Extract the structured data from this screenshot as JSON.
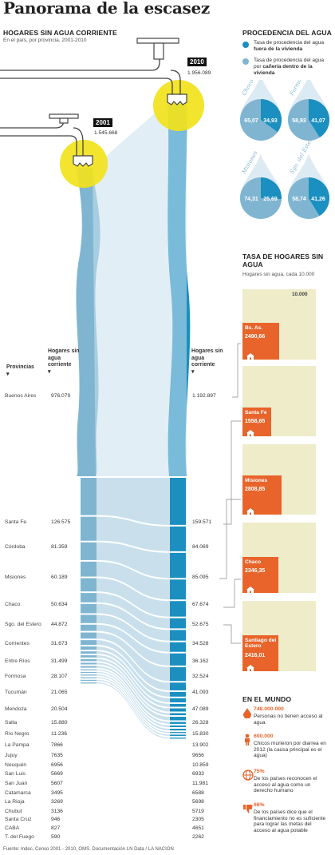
{
  "title": "Panorama de la escasez",
  "left_section": {
    "heading": "HOGARES SIN AGUA CORRIENTE",
    "subheading": "En el país, por provincia, 2001-2010",
    "col_provincias": "Provincias",
    "col_hogares_2001": "Hogares sin agua corriente",
    "col_hogares_2010": "Hogares sin agua corriente",
    "tap_2001": {
      "year": "2001",
      "total": "1.545.668"
    },
    "tap_2010": {
      "year": "2010",
      "total": "1.956.089"
    }
  },
  "chart_data": {
    "type": "bar",
    "title": "HOGARES SIN AGUA CORRIENTE",
    "subtitle": "En el país, por provincia, 2001-2010",
    "categories": [
      "Buenos Aires",
      "Santa Fe",
      "Córdoba",
      "Misiones",
      "Chaco",
      "Sgo. del Estero",
      "Corrientes",
      "Entre Ríos",
      "Formosa",
      "Tucumán",
      "Mendoza",
      "Salta",
      "Río Negro",
      "La Pampa",
      "Jujuy",
      "Neuquén",
      "San Luis",
      "San Juan",
      "Catamarca",
      "La Rioja",
      "Chubut",
      "Santa Cruz",
      "CABA",
      "T. del Fuego"
    ],
    "series": [
      {
        "name": "2001",
        "values": [
          976079,
          126575,
          81359,
          60189,
          50634,
          44872,
          31673,
          31499,
          28107,
          21065,
          20504,
          15880,
          11236,
          7866,
          7635,
          6956,
          5669,
          5607,
          3495,
          3269,
          3136,
          946,
          827,
          590
        ]
      },
      {
        "name": "2010",
        "values": [
          1192897,
          159571,
          84069,
          85095,
          67674,
          52675,
          34528,
          36162,
          32524,
          41093,
          47089,
          26328,
          15830,
          13902,
          9656,
          10859,
          6933,
          11981,
          6588,
          5698,
          5719,
          2305,
          4651,
          2262
        ]
      }
    ],
    "labels_2001": [
      "976.079",
      "126.575",
      "81.359",
      "60.189",
      "50.634",
      "44.872",
      "31.673",
      "31.499",
      "28.107",
      "21.065",
      "20.504",
      "15.880",
      "11.236",
      "7866",
      "7635",
      "6956",
      "5669",
      "5607",
      "3495",
      "3269",
      "3136",
      "946",
      "827",
      "590"
    ],
    "labels_2010": [
      "1.192.897",
      "159.571",
      "84.069",
      "85.095",
      "67.674",
      "52.675",
      "34.528",
      "36.162",
      "32.524",
      "41.093",
      "47.089",
      "26.328",
      "15.830",
      "13.902",
      "9656",
      "10.859",
      "6933",
      "11.981",
      "6588",
      "5698",
      "5719",
      "2305",
      "4651",
      "2262"
    ],
    "totals": {
      "2001": "1.545.668",
      "2010": "1.956.089"
    }
  },
  "procedencia": {
    "heading": "PROCEDENCIA DEL AGUA",
    "legend": [
      {
        "pre": "Tasa de procedencia del agua ",
        "bold": "fuera de la vivienda",
        "color": "#1a8fc0"
      },
      {
        "pre": "Tasa de procedencia del agua por ",
        "bold": "cañería dentro de la vivienda",
        "color": "#7fb5d1"
      }
    ],
    "drops": [
      {
        "name": "Chaco",
        "fuera": 34.93,
        "dentro": 65.07,
        "fuera_label": "34,93",
        "dentro_label": "65,07"
      },
      {
        "name": "Formosa",
        "fuera": 41.07,
        "dentro": 58.93,
        "fuera_label": "41,07",
        "dentro_label": "58,93"
      },
      {
        "name": "Misiones",
        "fuera": 25.69,
        "dentro": 74.31,
        "fuera_label": "25,69",
        "dentro_label": "74,31"
      },
      {
        "name": "Sgo. del Estero",
        "fuera": 41.26,
        "dentro": 58.74,
        "fuera_label": "41,26",
        "dentro_label": "58,74"
      }
    ]
  },
  "tasa": {
    "heading": "TASA DE HOGARES SIN AGUA",
    "subheading": "Hogares sin agua, cada 10.000",
    "scale_label": "10.000",
    "scale_max": 10000,
    "items": [
      {
        "name": "Bs. As.",
        "value": 2490.66,
        "label": "2490,66"
      },
      {
        "name": "Santa Fe",
        "value": 1558.65,
        "label": "1558,65"
      },
      {
        "name": "Misiones",
        "value": 2808.85,
        "label": "2808,85"
      },
      {
        "name": "Chaco",
        "value": 2346.35,
        "label": "2346,35"
      },
      {
        "name": "Santiago del Estero",
        "value": 2416.01,
        "label": "2416,01"
      }
    ]
  },
  "mundo": {
    "heading": "EN EL MUNDO",
    "items": [
      {
        "icon": "drop-icon",
        "value": "748.000.000",
        "text": "Personas no tienen acceso al agua"
      },
      {
        "icon": "child-icon",
        "value": "600.000",
        "text": "Chicos murieron por diarrea en 2012 (la causa principal es el agua)"
      },
      {
        "icon": "globe-icon",
        "value": "75%",
        "text": "De los países reconocen el acceso al agua como un derecho humano"
      },
      {
        "icon": "thumbs-down-icon",
        "value": "66%",
        "text": "De los países dice que el financiamiento no es suficiente para lograr las metas del acceso al agua potable"
      }
    ]
  },
  "source": "Fuente: Indec, Censo 2001 - 2010, OMS. Documentación LN Data / LA NACION",
  "colors": {
    "dark_blue": "#1a8fc0",
    "light_blue": "#7fb5d1",
    "pale_blue": "#c9e0ec",
    "orange": "#e8642a",
    "yellow": "#f2e21c",
    "beige": "#eeecc9"
  }
}
